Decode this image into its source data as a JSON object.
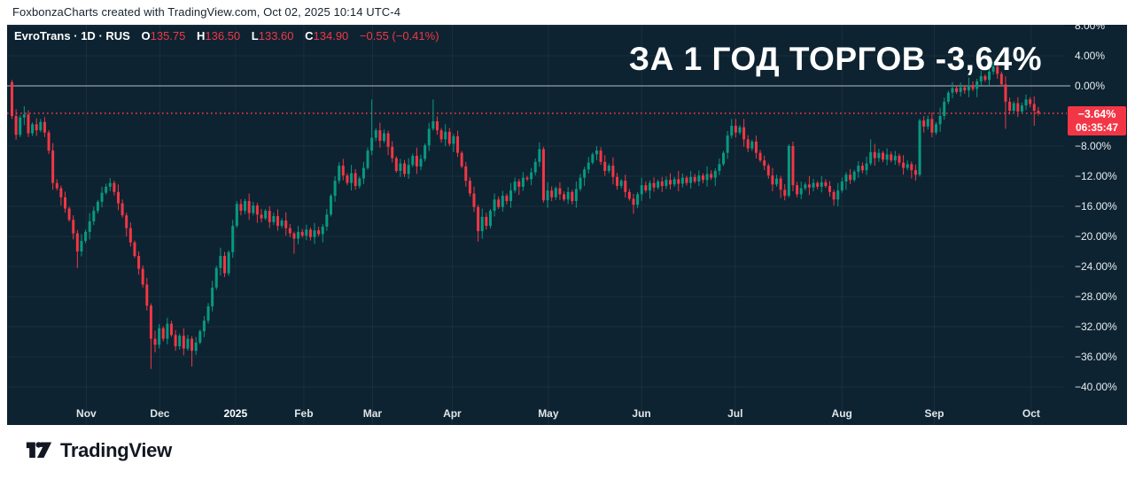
{
  "header": {
    "attribution": "FoxbonzaCharts created with TradingView.com, Oct 02, 2025 10:14 UTC-4"
  },
  "chart": {
    "legend": {
      "symbol": "EvroTrans",
      "sep1": "·",
      "interval": "1D",
      "sep2": "·",
      "exchange": "RUS",
      "o_label": "O",
      "o_value": "135.75",
      "h_label": "H",
      "h_value": "136.50",
      "l_label": "L",
      "l_value": "133.60",
      "c_label": "C",
      "c_value": "134.90",
      "change": "−0.55 (−0.41%)"
    },
    "title": "ЗА 1 ГОД ТОРГОВ -3,64%",
    "price_badge": {
      "value": "−3.64%",
      "countdown": "06:35:47"
    }
  },
  "footer": {
    "brand": "TradingView"
  },
  "chart_data": {
    "type": "candlestick",
    "symbol": "EvroTrans",
    "interval": "1D",
    "unit": "percent change over 1 year of trading",
    "baseline_value": 0,
    "current_value": -3.64,
    "ylim": [
      -42,
      8.1
    ],
    "grid": true,
    "up_color": "#089981",
    "down_color": "#f23645",
    "baseline_color": "#b4bcc3",
    "dotted_line_color": "#f23645",
    "grid_color": "rgba(255,255,255,0.055)",
    "y_ticks": [
      {
        "label": "8.00%",
        "v": 8
      },
      {
        "label": "4.00%",
        "v": 4
      },
      {
        "label": "0.00%",
        "v": 0
      },
      {
        "label": "−8.00%",
        "v": -8
      },
      {
        "label": "−12.00%",
        "v": -12
      },
      {
        "label": "−16.00%",
        "v": -16
      },
      {
        "label": "−20.00%",
        "v": -20
      },
      {
        "label": "−24.00%",
        "v": -24
      },
      {
        "label": "−28.00%",
        "v": -28
      },
      {
        "label": "−32.00%",
        "v": -32
      },
      {
        "label": "−36.00%",
        "v": -36
      },
      {
        "label": "−40.00%",
        "v": -40
      }
    ],
    "x_ticks": [
      {
        "label": "Nov",
        "i": 18.5
      },
      {
        "label": "Dec",
        "i": 36.5
      },
      {
        "label": "2025",
        "i": 55,
        "year": true
      },
      {
        "label": "Feb",
        "i": 71.7
      },
      {
        "label": "Mar",
        "i": 88.5
      },
      {
        "label": "Apr",
        "i": 108
      },
      {
        "label": "May",
        "i": 131.5
      },
      {
        "label": "Jun",
        "i": 154.3
      },
      {
        "label": "Jul",
        "i": 177.2
      },
      {
        "label": "Aug",
        "i": 203.3
      },
      {
        "label": "Sep",
        "i": 225.9
      },
      {
        "label": "Oct",
        "i": 249.6
      }
    ],
    "open_first": 0.5,
    "closes": [
      -4.0,
      -6.5,
      -4.2,
      -3.8,
      -6.3,
      -5.1,
      -5.9,
      -4.8,
      -6.2,
      -8.6,
      -12.9,
      -13.6,
      -14.8,
      -16.3,
      -17.8,
      -19.6,
      -22.0,
      -20.6,
      -19.4,
      -18.0,
      -16.6,
      -15.4,
      -14.2,
      -13.4,
      -12.9,
      -14.1,
      -15.6,
      -17.2,
      -18.9,
      -20.8,
      -22.6,
      -24.3,
      -26.4,
      -29.2,
      -33.6,
      -34.4,
      -32.2,
      -33.6,
      -31.6,
      -33.1,
      -34.6,
      -33.2,
      -34.9,
      -33.6,
      -35.2,
      -34.1,
      -32.6,
      -31.2,
      -29.3,
      -26.8,
      -24.2,
      -22.6,
      -24.9,
      -22.1,
      -18.6,
      -15.7,
      -16.6,
      -15.3,
      -16.9,
      -15.9,
      -17.1,
      -17.6,
      -16.6,
      -18.1,
      -17.3,
      -18.6,
      -17.9,
      -18.9,
      -19.6,
      -20.3,
      -19.4,
      -19.9,
      -19.1,
      -20.1,
      -19.2,
      -19.7,
      -18.7,
      -17.1,
      -14.6,
      -12.6,
      -10.6,
      -11.9,
      -12.9,
      -11.6,
      -13.3,
      -12.3,
      -10.9,
      -8.6,
      -6.9,
      -5.9,
      -7.3,
      -6.3,
      -8.1,
      -9.6,
      -11.3,
      -10.3,
      -11.7,
      -10.5,
      -9.3,
      -10.7,
      -9.7,
      -7.9,
      -5.7,
      -4.7,
      -5.9,
      -7.1,
      -6.1,
      -7.7,
      -6.7,
      -8.9,
      -10.7,
      -12.6,
      -14.3,
      -16.1,
      -19.3,
      -17.4,
      -18.6,
      -16.6,
      -15.1,
      -16.1,
      -14.6,
      -15.3,
      -13.9,
      -12.7,
      -13.4,
      -12.2,
      -12.4,
      -11.5,
      -10.1,
      -8.4,
      -15.2,
      -13.9,
      -14.8,
      -13.6,
      -14.4,
      -15.1,
      -14.1,
      -15.3,
      -13.7,
      -12.2,
      -11.1,
      -10.2,
      -9.1,
      -8.6,
      -10.1,
      -11.3,
      -10.6,
      -12.1,
      -13.3,
      -12.6,
      -14.1,
      -15.0,
      -15.8,
      -14.4,
      -13.2,
      -13.9,
      -12.9,
      -13.5,
      -12.7,
      -13.3,
      -12.5,
      -13.1,
      -12.4,
      -13.0,
      -12.2,
      -12.9,
      -12.1,
      -12.7,
      -11.9,
      -12.5,
      -11.7,
      -12.2,
      -11.3,
      -10.4,
      -8.9,
      -6.6,
      -5.3,
      -6.2,
      -5.5,
      -7.1,
      -8.3,
      -7.4,
      -8.9,
      -9.9,
      -10.6,
      -11.9,
      -13.1,
      -12.3,
      -13.8,
      -14.6,
      -8.0,
      -13.2,
      -14.4,
      -13.6,
      -13.1,
      -13.5,
      -12.9,
      -13.4,
      -12.8,
      -13.3,
      -14.1,
      -15.1,
      -13.9,
      -12.7,
      -11.8,
      -12.5,
      -11.4,
      -10.6,
      -11.2,
      -10.3,
      -8.8,
      -9.6,
      -8.9,
      -9.8,
      -9.1,
      -9.9,
      -9.3,
      -10.2,
      -10.9,
      -10.4,
      -11.2,
      -11.8,
      -4.6,
      -5.4,
      -4.4,
      -6.2,
      -5.1,
      -4.0,
      -2.1,
      -0.9,
      -0.3,
      -0.8,
      -0.2,
      -0.6,
      0.1,
      -0.4,
      0.6,
      1.3,
      0.8,
      1.9,
      2.6,
      1.6,
      0.2,
      -2.1,
      -3.3,
      -2.3,
      -3.4,
      -2.6,
      -1.8,
      -2.4,
      -3.3,
      -3.64
    ],
    "wick_pattern": [
      0.45,
      0.9,
      0.3,
      1.1,
      0.55,
      0.25,
      0.8,
      0.4,
      0.65,
      0.3,
      1.0,
      0.5,
      0.35,
      0.75,
      0.25,
      0.6
    ],
    "wick_overrides": {
      "0": {
        "h": 0.8
      },
      "16": {
        "l": -24.2
      },
      "34": {
        "l": -37.6
      },
      "44": {
        "l": -37.3
      },
      "69": {
        "l": -22.3
      },
      "88": {
        "h": -1.8
      },
      "103": {
        "h": -1.8
      },
      "114": {
        "l": -20.7
      },
      "152": {
        "l": -17.0
      },
      "176": {
        "h": -4.4
      },
      "189": {
        "l": -15.2
      },
      "201": {
        "l": -15.9
      },
      "210": {
        "h": -7.1
      },
      "221": {
        "l": -12.6
      },
      "240": {
        "h": 3.2
      },
      "243": {
        "l": -5.7
      },
      "250": {
        "l": -5.3
      }
    }
  }
}
